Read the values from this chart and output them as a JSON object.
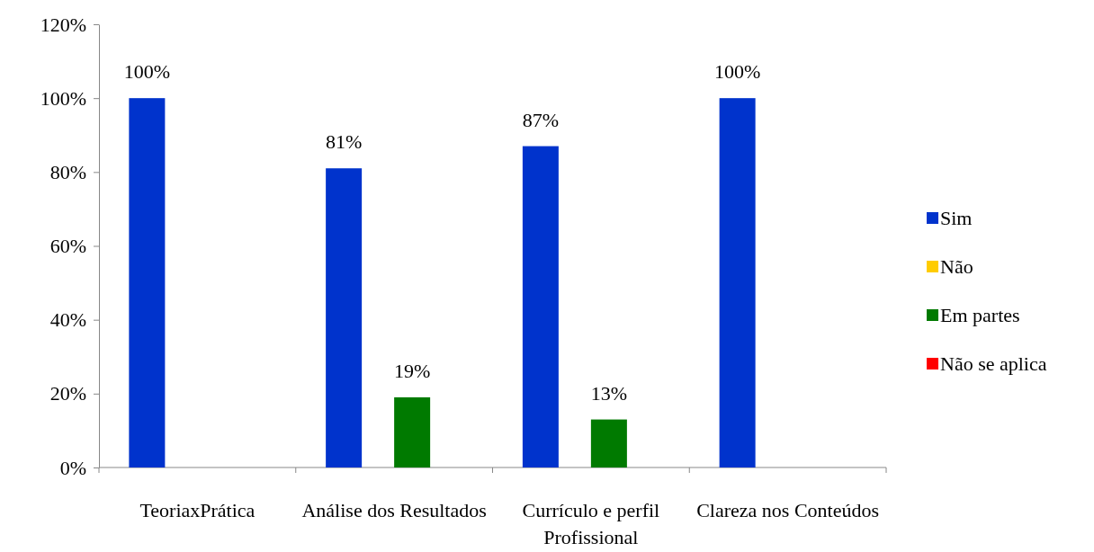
{
  "chart_data": {
    "type": "bar",
    "categories": [
      "TeoriaxPrática",
      "Análise dos Resultados",
      "Currículo e perfil Profissional",
      "Clareza nos Conteúdos"
    ],
    "series": [
      {
        "name": "Sim",
        "color": "#0033cc",
        "values": [
          100,
          81,
          87,
          100
        ],
        "value_labels": [
          "100%",
          "81%",
          "87%",
          "100%"
        ]
      },
      {
        "name": "Não",
        "color": "#ffcc00",
        "values": [
          0,
          0,
          0,
          0
        ]
      },
      {
        "name": "Em partes",
        "color": "#007a00",
        "values": [
          0,
          19,
          13,
          0
        ],
        "value_labels": [
          null,
          "19%",
          "13%",
          null
        ]
      },
      {
        "name": "Não se aplica",
        "color": "#ff0000",
        "values": [
          0,
          0,
          0,
          0
        ]
      }
    ],
    "ylim": [
      0,
      120
    ],
    "yticks": [
      {
        "value": 0,
        "label": "0%"
      },
      {
        "value": 20,
        "label": "20%"
      },
      {
        "value": 40,
        "label": "40%"
      },
      {
        "value": 60,
        "label": "60%"
      },
      {
        "value": 80,
        "label": "80%"
      },
      {
        "value": 100,
        "label": "100%"
      },
      {
        "value": 120,
        "label": "120%"
      }
    ],
    "grid": false,
    "legend": "right"
  }
}
